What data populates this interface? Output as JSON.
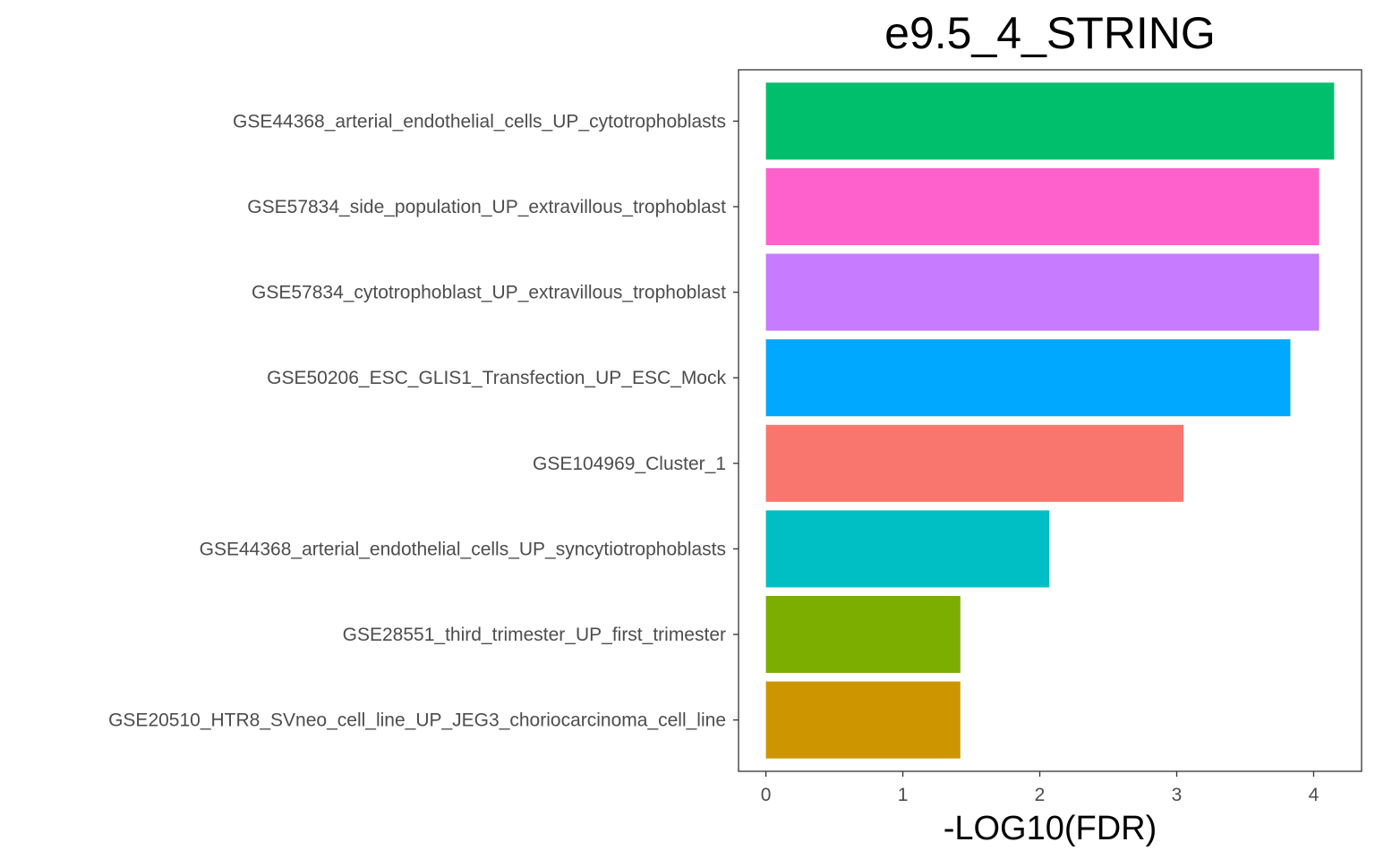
{
  "chart_data": {
    "type": "bar",
    "orientation": "horizontal",
    "title": "e9.5_4_STRING",
    "xlabel": "-LOG10(FDR)",
    "ylabel": "",
    "xlim": [
      -0.2,
      4.35
    ],
    "xticks": [
      "0",
      "1",
      "2",
      "3",
      "4"
    ],
    "grid": false,
    "legend": "none",
    "categories": [
      "GSE44368_arterial_endothelial_cells_UP_cytotrophoblasts",
      "GSE57834_side_population_UP_extravillous_trophoblast",
      "GSE57834_cytotrophoblast_UP_extravillous_trophoblast",
      "GSE50206_ESC_GLIS1_Transfection_UP_ESC_Mock",
      "GSE104969_Cluster_1",
      "GSE44368_arterial_endothelial_cells_UP_syncytiotrophoblasts",
      "GSE28551_third_trimester_UP_first_trimester",
      "GSE20510_HTR8_SVneo_cell_line_UP_JEG3_choriocarcinoma_cell_line"
    ],
    "values": [
      4.15,
      4.04,
      4.04,
      3.83,
      3.05,
      2.07,
      1.42,
      1.42
    ],
    "colors": [
      "#00BF6C",
      "#FF61CC",
      "#C77CFF",
      "#00A9FF",
      "#F8766D",
      "#00BFC4",
      "#7CAE00",
      "#CD9600"
    ]
  }
}
